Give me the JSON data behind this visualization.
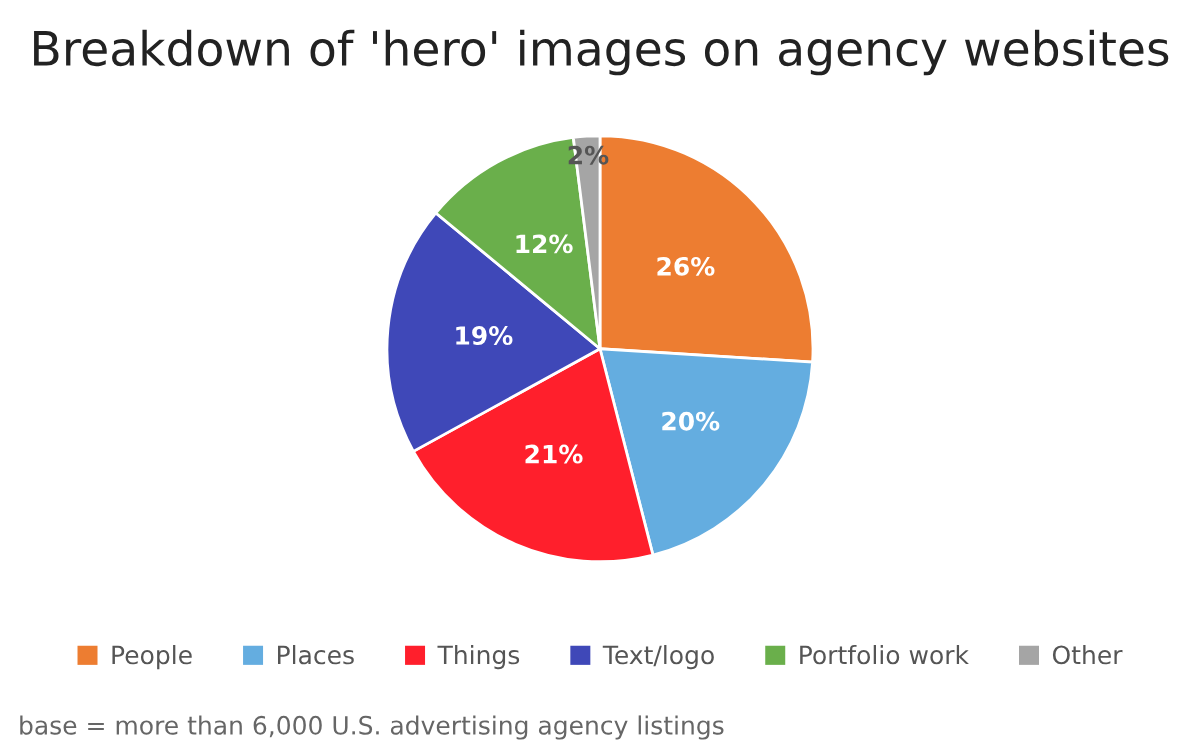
{
  "chart_data": {
    "type": "pie",
    "title": "Breakdown of 'hero' images on agency websites",
    "categories": [
      "People",
      "Places",
      "Things",
      "Text/logo",
      "Portfolio work",
      "Other"
    ],
    "values": [
      26,
      20,
      21,
      19,
      12,
      2
    ],
    "colors": [
      "#ed7d31",
      "#64ade0",
      "#ff1f2c",
      "#3f48b8",
      "#6aaf4b",
      "#a5a5a5"
    ],
    "value_labels": [
      "26%",
      "20%",
      "21%",
      "19%",
      "12%",
      "2%"
    ],
    "legend": "bottom",
    "annotations": [
      "base = more than 6,000 U.S. advertising agency listings"
    ]
  }
}
